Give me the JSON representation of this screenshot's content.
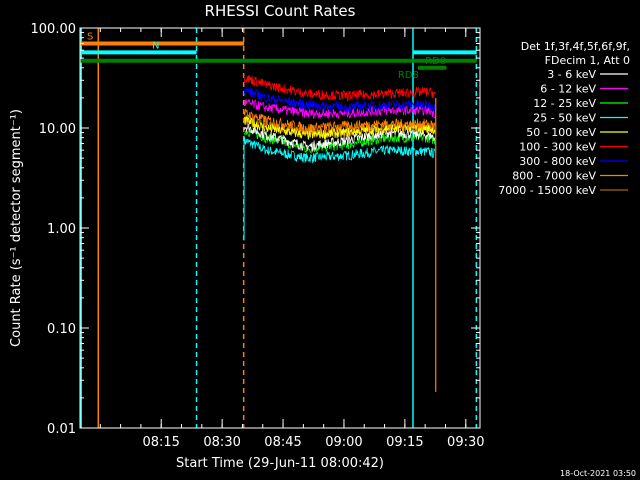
{
  "chart_data": {
    "type": "line",
    "title": "RHESSI Count Rates",
    "xlabel": "Start Time (29-Jun-11 08:00:42)",
    "ylabel": "Count Rate (s⁻¹ detector segment⁻¹)",
    "y_scale": "log",
    "ylim": [
      0.01,
      100.0
    ],
    "y_ticks": [
      0.01,
      0.1,
      1.0,
      10.0,
      100.0
    ],
    "y_tick_labels": [
      "0.01",
      "0.10",
      "1.00",
      "10.00",
      "100.00"
    ],
    "x_unit": "minutes since 08:00:42",
    "xlim": [
      -5.7,
      92.8
    ],
    "x_ticks": [
      14.3,
      29.3,
      44.3,
      59.3,
      74.3,
      89.3
    ],
    "x_tick_labels": [
      "08:15",
      "08:30",
      "08:45",
      "09:00",
      "09:15",
      "09:30"
    ],
    "legend_header": [
      "Det 1f,3f,4f,5f,6f,9f,",
      "FDecim 1, Att 0"
    ],
    "legend_position": "right",
    "timestamp": "18-Oct-2021 03:50",
    "data_start": 34.7,
    "data_end": 81.8,
    "series": [
      {
        "name": "3 - 6 keV",
        "color": "#ffffff",
        "values": [
          [
            34.7,
            10.5
          ],
          [
            40,
            8.5
          ],
          [
            50,
            6.5
          ],
          [
            60,
            7.5
          ],
          [
            70,
            9.0
          ],
          [
            80,
            8.5
          ],
          [
            81.8,
            8.0
          ]
        ]
      },
      {
        "name": "6 - 12 keV",
        "color": "#ff00ff",
        "values": [
          [
            34.7,
            18
          ],
          [
            40,
            16
          ],
          [
            50,
            14
          ],
          [
            60,
            14
          ],
          [
            70,
            15
          ],
          [
            80,
            15
          ],
          [
            81.8,
            14
          ]
        ]
      },
      {
        "name": "12 - 25 keV",
        "color": "#00ff00",
        "values": [
          [
            34.7,
            9.5
          ],
          [
            40,
            8
          ],
          [
            50,
            6.2
          ],
          [
            60,
            6.8
          ],
          [
            70,
            8
          ],
          [
            80,
            8
          ],
          [
            81.8,
            7.5
          ]
        ]
      },
      {
        "name": "25 - 50 keV",
        "color": "#00ffff",
        "values": [
          [
            34.7,
            7.5
          ],
          [
            40,
            6
          ],
          [
            50,
            5
          ],
          [
            60,
            5.3
          ],
          [
            70,
            6
          ],
          [
            80,
            5.8
          ],
          [
            81.8,
            5.5
          ]
        ]
      },
      {
        "name": "50 - 100 keV",
        "color": "#ffff00",
        "values": [
          [
            34.7,
            12
          ],
          [
            40,
            10
          ],
          [
            50,
            8.5
          ],
          [
            60,
            9
          ],
          [
            70,
            10
          ],
          [
            80,
            10
          ],
          [
            81.8,
            9.5
          ]
        ]
      },
      {
        "name": "100 - 300 keV",
        "color": "#ff0000",
        "values": [
          [
            34.7,
            32
          ],
          [
            40,
            27
          ],
          [
            50,
            22
          ],
          [
            60,
            21
          ],
          [
            70,
            22
          ],
          [
            80,
            23
          ],
          [
            81.8,
            22
          ]
        ]
      },
      {
        "name": "300 - 800 keV",
        "color": "#0000ff",
        "values": [
          [
            34.7,
            24
          ],
          [
            40,
            20
          ],
          [
            50,
            17
          ],
          [
            60,
            16
          ],
          [
            70,
            17
          ],
          [
            80,
            17
          ],
          [
            81.8,
            16
          ]
        ]
      },
      {
        "name": "800 - 7000 keV",
        "color": "#ff8000",
        "values": [
          [
            34.7,
            14
          ],
          [
            40,
            12
          ],
          [
            50,
            10
          ],
          [
            60,
            10.5
          ],
          [
            70,
            11
          ],
          [
            80,
            11
          ],
          [
            81.8,
            10.5
          ]
        ]
      },
      {
        "name": "7000 - 15000 keV",
        "color": "#aa6600",
        "values": [
          [
            34.7,
            12
          ],
          [
            40,
            10.5
          ],
          [
            50,
            9
          ],
          [
            60,
            9
          ],
          [
            70,
            10
          ],
          [
            80,
            10
          ],
          [
            81.8,
            9.5
          ]
        ]
      }
    ],
    "flags": [
      {
        "label": "S",
        "color": "#ff8000",
        "y": 70,
        "x": [
          -5.7,
          34.7
        ]
      },
      {
        "label": "N",
        "color": "#00ffff",
        "y": 57,
        "x": [
          -5.7,
          23.0
        ]
      },
      {
        "label": "",
        "color": "#00ffff",
        "y": 57,
        "x": [
          76.3,
          92.0
        ]
      },
      {
        "label": "",
        "color": "#008000",
        "y": 47,
        "x": [
          -5.7,
          92.0
        ]
      },
      {
        "label": "RD8",
        "color": "#008000",
        "y": 40,
        "x": [
          77.5,
          79.3
        ]
      },
      {
        "label": "RD0",
        "color": "#008000",
        "y": 40,
        "x": [
          79.3,
          84.5
        ]
      }
    ],
    "vlines": [
      {
        "x": -5.4,
        "color": "#00ffff",
        "dash": false
      },
      {
        "x": 23.0,
        "color": "#00ffff",
        "dash": true
      },
      {
        "x": 76.3,
        "color": "#00ffff",
        "dash": false
      },
      {
        "x": 91.9,
        "color": "#00ffff",
        "dash": true
      },
      {
        "x": -1.2,
        "color": "#ff8000",
        "dash": false
      },
      {
        "x": 34.6,
        "color": "#ff8000",
        "dash": true
      }
    ]
  }
}
